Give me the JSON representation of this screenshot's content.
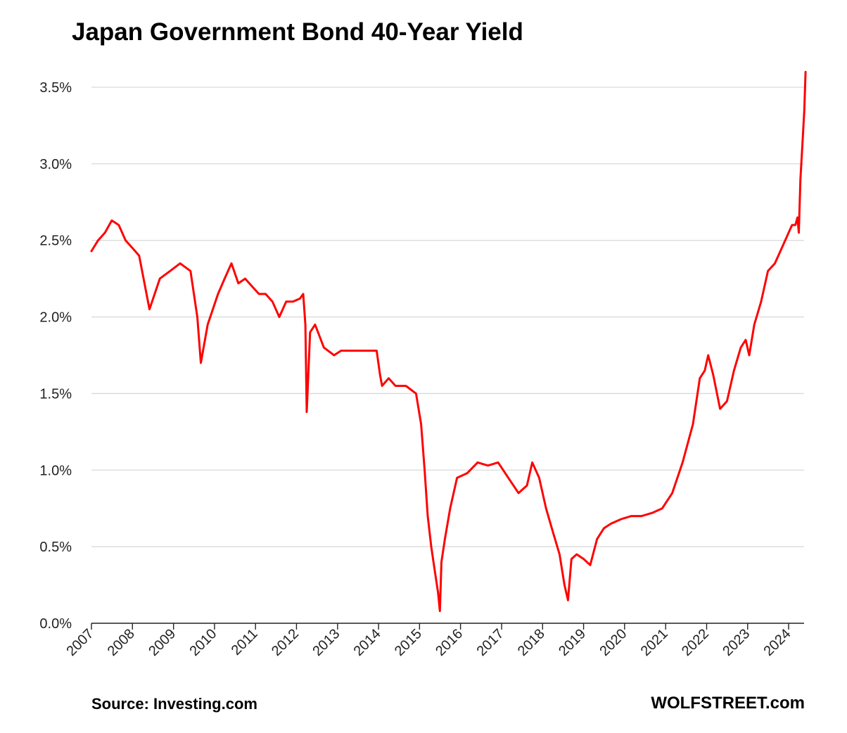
{
  "chart_data": {
    "type": "line",
    "title": "Japan Government Bond 40-Year Yield",
    "xlabel": "",
    "ylabel": "",
    "x_tick_labels": [
      "2007",
      "2008",
      "2009",
      "2010",
      "2011",
      "2012",
      "2013",
      "2014",
      "2015",
      "2016",
      "2017",
      "2018",
      "2019",
      "2020",
      "2021",
      "2022",
      "2023",
      "2024"
    ],
    "y_tick_labels": [
      "0.0%",
      "0.5%",
      "1.0%",
      "1.5%",
      "2.0%",
      "2.5%",
      "3.0%",
      "3.5%"
    ],
    "xlim": [
      "2007-01-01",
      "2024-05-31"
    ],
    "ylim": [
      0,
      3.6
    ],
    "grid": "horizontal",
    "legend": "none",
    "series": [
      {
        "color": "#ff0000",
        "x": [
          "2007-01-01",
          "2007-03-01",
          "2007-05-01",
          "2007-07-01",
          "2007-09-01",
          "2007-11-01",
          "2008-01-01",
          "2008-03-01",
          "2008-06-01",
          "2008-09-01",
          "2008-12-01",
          "2009-03-01",
          "2009-06-01",
          "2009-08-01",
          "2009-09-01",
          "2009-11-01",
          "2010-02-01",
          "2010-04-01",
          "2010-06-01",
          "2010-08-01",
          "2010-10-01",
          "2010-12-01",
          "2011-02-01",
          "2011-04-01",
          "2011-06-01",
          "2011-08-01",
          "2011-10-01",
          "2011-12-01",
          "2012-02-01",
          "2012-03-01",
          "2012-03-20",
          "2012-04-01",
          "2012-05-01",
          "2012-06-15",
          "2012-09-01",
          "2012-12-01",
          "2013-02-01",
          "2013-05-01",
          "2013-08-01",
          "2013-11-01",
          "2013-12-15",
          "2014-01-15",
          "2014-02-01",
          "2014-04-01",
          "2014-06-01",
          "2014-09-01",
          "2014-12-01",
          "2015-01-15",
          "2015-02-15",
          "2015-03-15",
          "2015-04-15",
          "2015-05-15",
          "2015-06-15",
          "2015-07-01",
          "2015-07-15",
          "2015-08-15",
          "2015-10-01",
          "2015-12-01",
          "2016-03-01",
          "2016-06-01",
          "2016-09-01",
          "2016-12-01",
          "2017-03-01",
          "2017-06-01",
          "2017-08-15",
          "2017-10-01",
          "2017-12-01",
          "2018-02-01",
          "2018-04-01",
          "2018-06-01",
          "2018-07-15",
          "2018-08-15",
          "2018-09-15",
          "2018-11-01",
          "2019-01-01",
          "2019-03-01",
          "2019-05-01",
          "2019-07-01",
          "2019-09-01",
          "2019-12-01",
          "2020-03-01",
          "2020-06-01",
          "2020-09-01",
          "2020-12-01",
          "2021-03-01",
          "2021-06-01",
          "2021-09-01",
          "2021-11-01",
          "2021-12-15",
          "2022-01-15",
          "2022-03-01",
          "2022-05-01",
          "2022-07-01",
          "2022-09-01",
          "2022-11-01",
          "2022-12-15",
          "2023-01-15",
          "2023-03-01",
          "2023-05-01",
          "2023-07-01",
          "2023-09-01",
          "2023-11-01",
          "2024-01-01",
          "2024-02-01",
          "2024-03-01",
          "2024-03-20",
          "2024-04-01",
          "2024-04-15",
          "2024-05-01",
          "2024-05-20",
          "2024-05-31"
        ],
        "y": [
          2.43,
          2.5,
          2.55,
          2.63,
          2.6,
          2.5,
          2.45,
          2.4,
          2.05,
          2.25,
          2.3,
          2.35,
          2.3,
          2.0,
          1.7,
          1.95,
          2.15,
          2.25,
          2.35,
          2.22,
          2.25,
          2.2,
          2.15,
          2.15,
          2.1,
          2.0,
          2.1,
          2.1,
          2.12,
          2.15,
          1.95,
          1.38,
          1.9,
          1.95,
          1.8,
          1.75,
          1.78,
          1.78,
          1.78,
          1.78,
          1.78,
          1.62,
          1.55,
          1.6,
          1.55,
          1.55,
          1.5,
          1.3,
          1.0,
          0.7,
          0.5,
          0.35,
          0.2,
          0.08,
          0.4,
          0.55,
          0.75,
          0.95,
          0.98,
          1.05,
          1.03,
          1.05,
          0.95,
          0.85,
          0.9,
          1.05,
          0.95,
          0.75,
          0.6,
          0.45,
          0.25,
          0.15,
          0.42,
          0.45,
          0.42,
          0.38,
          0.55,
          0.62,
          0.65,
          0.68,
          0.7,
          0.7,
          0.72,
          0.75,
          0.85,
          1.05,
          1.3,
          1.6,
          1.65,
          1.75,
          1.62,
          1.4,
          1.45,
          1.65,
          1.8,
          1.85,
          1.75,
          1.95,
          2.1,
          2.3,
          2.35,
          2.45,
          2.55,
          2.6,
          2.6,
          2.65,
          2.55,
          2.9,
          3.1,
          3.35,
          3.6
        ]
      }
    ]
  },
  "footer": {
    "source": "Source: Investing.com",
    "brand": "WOLFSTREET.com"
  }
}
